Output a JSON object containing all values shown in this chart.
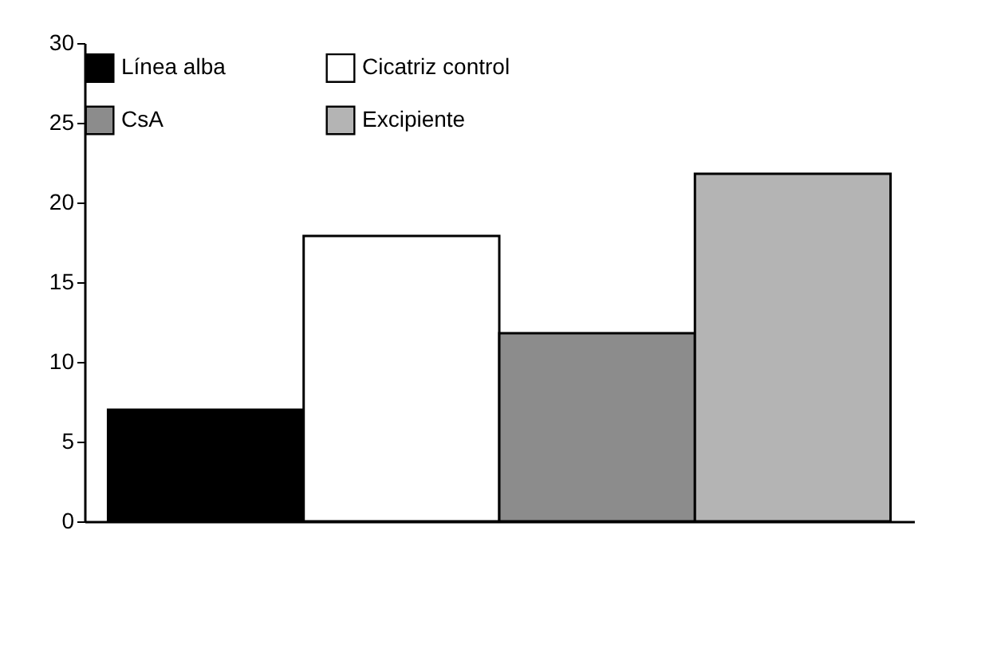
{
  "chart_data": {
    "type": "bar",
    "categories": [
      null
    ],
    "series": [
      {
        "name": "Línea alba",
        "color": "#000000",
        "values": [
          7
        ]
      },
      {
        "name": "Cicatriz control",
        "color": "#ffffff",
        "values": [
          17.9
        ]
      },
      {
        "name": "CsA",
        "color": "#8c8c8c",
        "values": [
          11.8
        ]
      },
      {
        "name": "Excipiente",
        "color": "#b4b4b4",
        "values": [
          21.8
        ]
      }
    ],
    "ylim": [
      0,
      30
    ],
    "yticks": [
      0,
      5,
      10,
      15,
      20,
      25,
      30
    ],
    "grid": false,
    "legend": "top",
    "tick_labels": "y"
  }
}
